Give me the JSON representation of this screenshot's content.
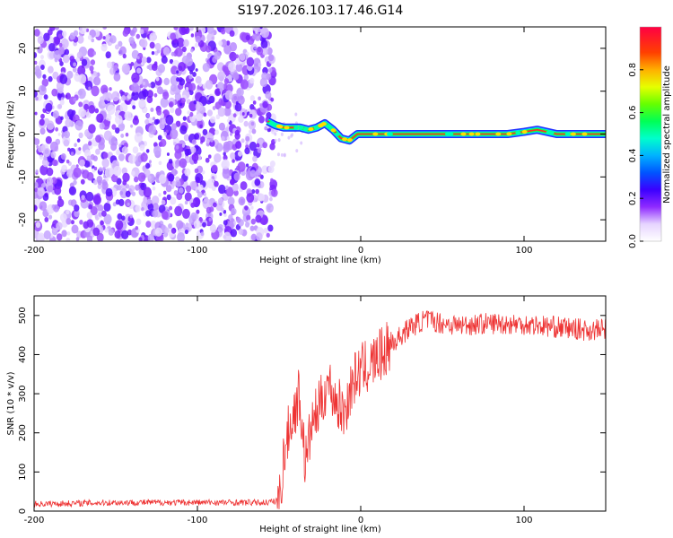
{
  "title": "S197.2026.103.17.46.G14",
  "chart_data": [
    {
      "type": "heatmap",
      "name": "spectrogram",
      "xlabel": "Height of straight line (km)",
      "ylabel": "Frequency (Hz)",
      "xlim": [
        -200,
        150
      ],
      "ylim": [
        -25,
        25
      ],
      "xticks": [
        -200,
        -100,
        0,
        100
      ],
      "yticks": [
        -20,
        -10,
        0,
        10,
        20
      ],
      "noise_region_x": [
        -200,
        -55
      ],
      "signal_track": {
        "x": [
          -57,
          -52,
          -47,
          -42,
          -37,
          -32,
          -27,
          -22,
          -17,
          -12,
          -7,
          -2,
          10,
          30,
          60,
          90,
          100,
          108,
          120,
          150
        ],
        "freq": [
          3,
          2,
          1.5,
          1.5,
          1.5,
          1,
          1.5,
          2.5,
          1,
          -1,
          -1.5,
          0,
          0,
          0,
          0,
          0,
          0.5,
          1,
          0,
          0
        ]
      },
      "colorbar": {
        "label": "Normalized spectral amplitude",
        "range": [
          0,
          1
        ],
        "ticks": [
          0.0,
          0.2,
          0.4,
          0.6,
          0.8
        ]
      }
    },
    {
      "type": "line",
      "name": "snr",
      "xlabel": "Height of straight line (km)",
      "ylabel": "SNR (10 * v/v)",
      "xlim": [
        -200,
        150
      ],
      "ylim": [
        0,
        550
      ],
      "xticks": [
        -200,
        -100,
        0,
        100
      ],
      "yticks": [
        0,
        100,
        200,
        300,
        400,
        500
      ],
      "series": [
        {
          "name": "SNR",
          "color": "#ee3333",
          "x": [
            -200,
            -150,
            -100,
            -60,
            -50,
            -47,
            -44,
            -40,
            -38,
            -36,
            -34,
            -30,
            -25,
            -20,
            -15,
            -10,
            -5,
            0,
            5,
            10,
            15,
            20,
            25,
            30,
            40,
            50,
            60,
            80,
            100,
            120,
            140,
            150
          ],
          "y": [
            18,
            22,
            22,
            22,
            25,
            140,
            210,
            260,
            300,
            230,
            120,
            220,
            270,
            330,
            280,
            250,
            330,
            360,
            370,
            390,
            410,
            430,
            450,
            470,
            490,
            480,
            475,
            480,
            478,
            470,
            462,
            465
          ]
        }
      ]
    }
  ]
}
